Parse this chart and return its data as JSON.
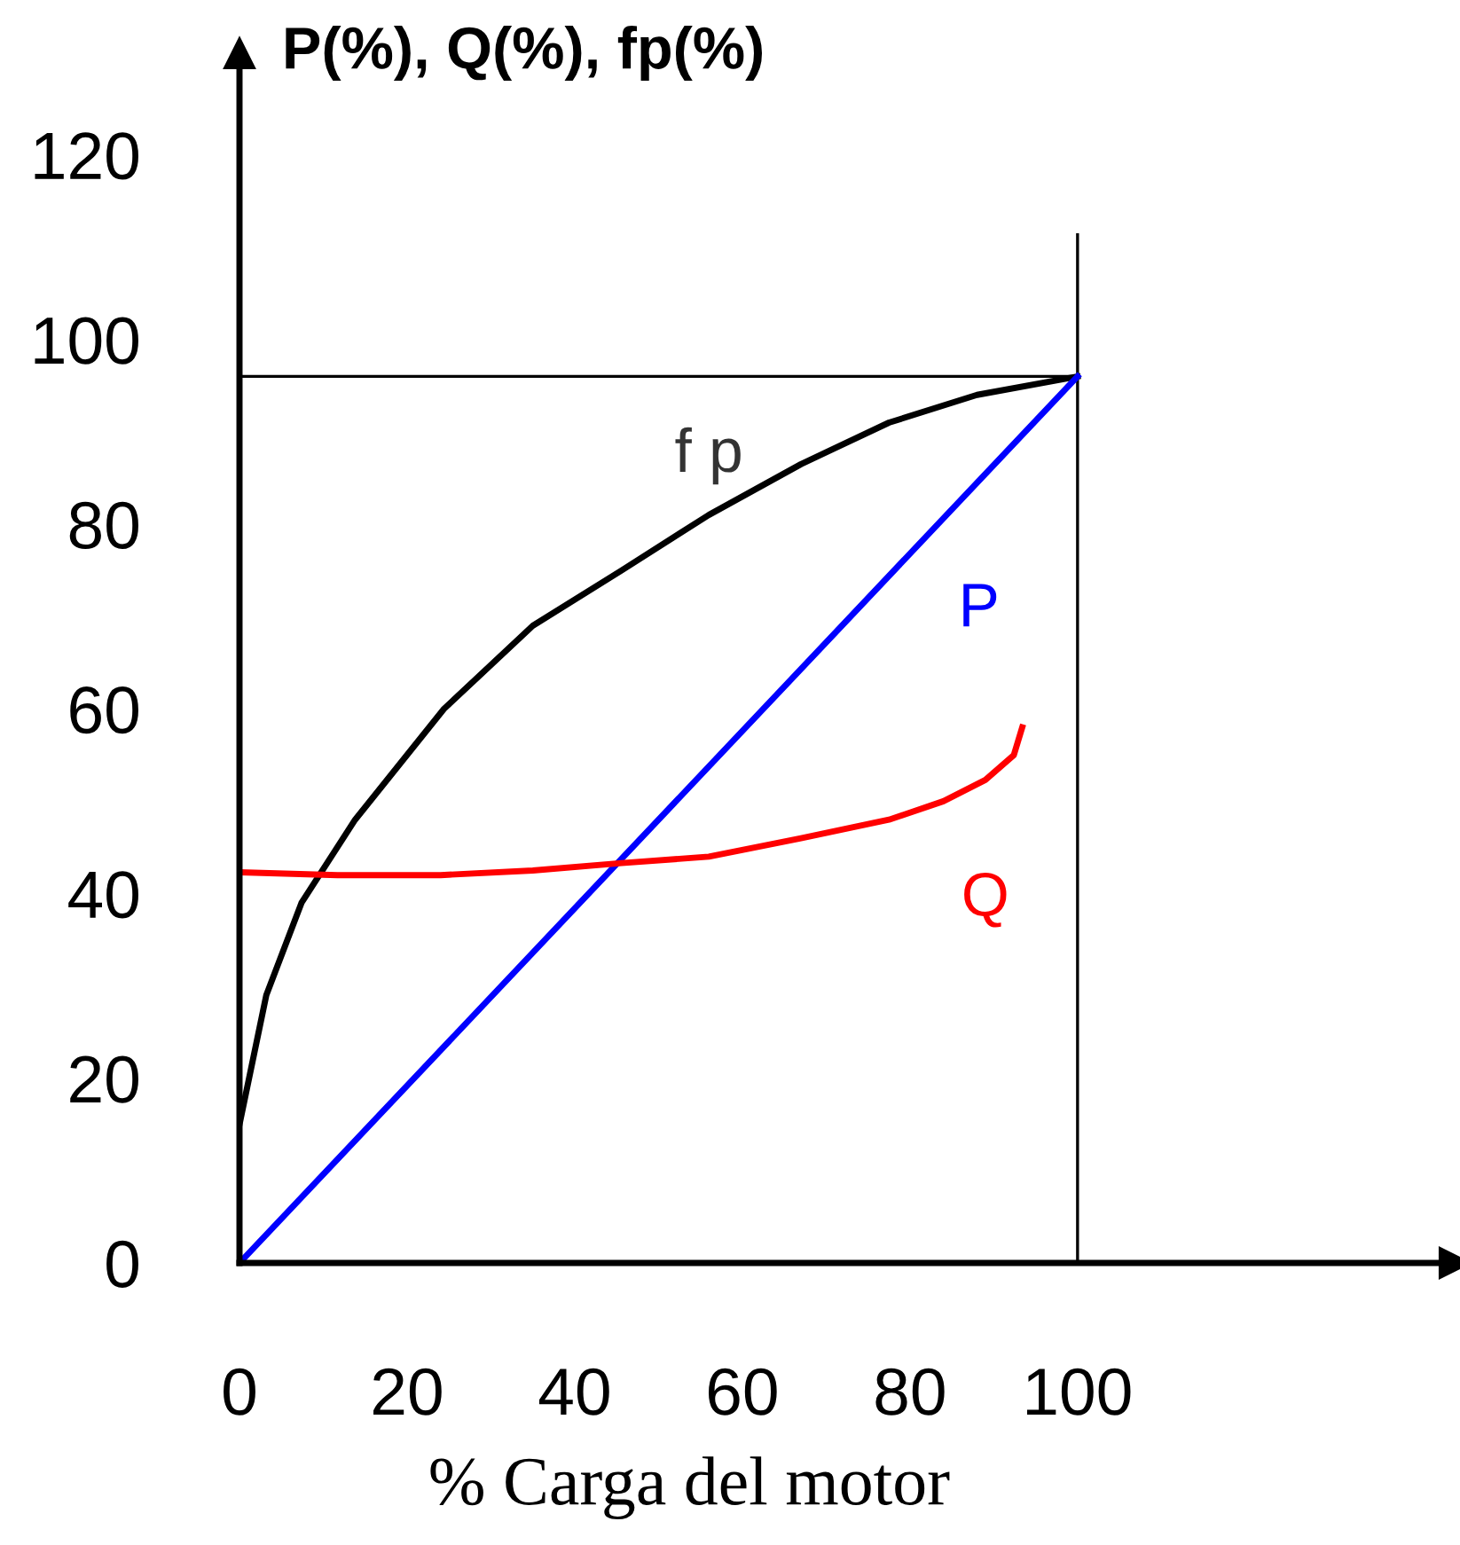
{
  "chart_data": {
    "type": "line",
    "ylabel": "P(%), Q(%), fp(%)",
    "xlabel": "% Carga del motor",
    "xlim": [
      0,
      145
    ],
    "ylim": [
      0,
      131
    ],
    "xticks": [
      0,
      20,
      40,
      60,
      80,
      100
    ],
    "yticks": [
      0,
      20,
      40,
      60,
      80,
      100,
      120
    ],
    "grid": false,
    "legend": false,
    "marker": "none",
    "line_style": "solid",
    "series": [
      {
        "name": "f p",
        "color": "#000000",
        "x": [
          0,
          3.2,
          7.4,
          13.8,
          24.4,
          35,
          45.6,
          56,
          67,
          77.5,
          88,
          100
        ],
        "values": [
          15,
          29,
          39,
          48,
          60,
          69,
          75,
          81,
          86.5,
          91,
          94,
          96
        ]
      },
      {
        "name": "P",
        "color": "#0000ff",
        "x": [
          0,
          100
        ],
        "values": [
          0,
          96
        ]
      },
      {
        "name": "Q",
        "color": "#ff0000",
        "x": [
          0,
          11.7,
          24,
          35,
          45.6,
          56,
          67,
          77.5,
          84,
          89,
          92.4,
          93.4
        ],
        "values": [
          42.3,
          42,
          42,
          42.5,
          43.3,
          44,
          46,
          48,
          50,
          52.3,
          55,
          58
        ]
      }
    ],
    "ref_lines": [
      {
        "axis": "y",
        "value": 96,
        "color": "#000000"
      },
      {
        "axis": "x",
        "value": 100,
        "color": "#000000"
      }
    ]
  }
}
